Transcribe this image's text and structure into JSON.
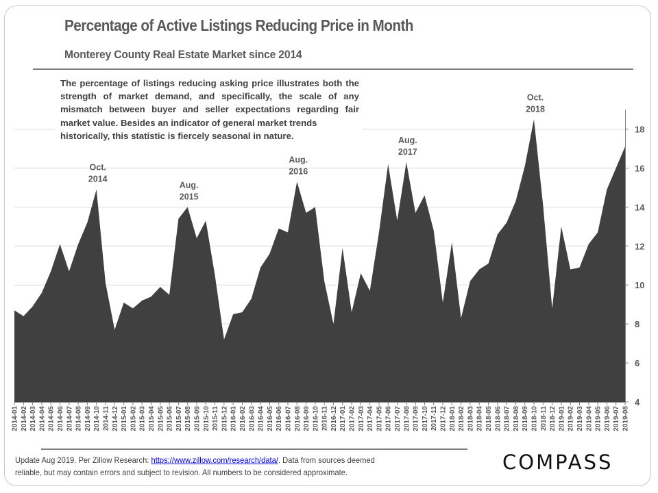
{
  "header": {
    "title": "Percentage of Active Listings Reducing Price in Month",
    "subtitle": "Monterey County Real Estate Market since 2014"
  },
  "description": {
    "body": "The percentage of listings reducing asking price illustrates both the strength of market demand, and specifically, the scale of any mismatch between buyer and seller expectations regarding fair market value. Besides an indicator of general market trends",
    "last_line": "historically, this statistic is fiercely seasonal in nature."
  },
  "footer": {
    "prefix": "Update Aug 2019. Per Zillow Research: ",
    "link_text": "https://www.zillow.com/research/data/",
    "suffix": ". Data from sources deemed",
    "line2": "reliable, but may contain errors and subject to revision.  All numbers to be considered approximate."
  },
  "logo": {
    "text": "COMPASS"
  },
  "colors": {
    "area_fill": "#404040",
    "gridline": "#d9d9d9",
    "axis": "#7f7f7f",
    "text": "#595959"
  },
  "chart_data": {
    "type": "area",
    "title": "Percentage of Active Listings Reducing Price in Month",
    "subtitle": "Monterey County Real Estate Market since 2014",
    "xlabel": "",
    "ylabel": "",
    "ylim": [
      4,
      19
    ],
    "yticks": [
      4,
      6,
      8,
      10,
      12,
      14,
      16,
      18
    ],
    "y_axis_side": "right",
    "grid": true,
    "legend": "none",
    "x": [
      "2014-01",
      "2014-02",
      "2014-03",
      "2014-04",
      "2014-05",
      "2014-06",
      "2014-07",
      "2014-08",
      "2014-09",
      "2014-10",
      "2014-11",
      "2014-12",
      "2015-01",
      "2015-02",
      "2015-03",
      "2015-04",
      "2015-05",
      "2015-06",
      "2015-07",
      "2015-08",
      "2015-09",
      "2015-10",
      "2015-11",
      "2015-12",
      "2016-01",
      "2016-02",
      "2016-03",
      "2016-04",
      "2016-05",
      "2016-06",
      "2016-07",
      "2016-08",
      "2016-09",
      "2016-10",
      "2016-11",
      "2016-12",
      "2017-01",
      "2017-02",
      "2017-03",
      "2017-04",
      "2017-05",
      "2017-06",
      "2017-07",
      "2017-08",
      "2017-09",
      "2017-10",
      "2017-11",
      "2017-12",
      "2018-01",
      "2018-02",
      "2018-03",
      "2018-04",
      "2018-05",
      "2018-06",
      "2018-07",
      "2018-08",
      "2018-09",
      "2018-10",
      "2018-11",
      "2018-12",
      "2019-01",
      "2019-02",
      "2019-03",
      "2019-04",
      "2019-05",
      "2019-06",
      "2019-07",
      "2019-08"
    ],
    "series": [
      {
        "name": "Percentage of active listings reducing price",
        "values": [
          8.7,
          8.4,
          8.9,
          9.6,
          10.7,
          12.1,
          10.7,
          12.1,
          13.2,
          14.9,
          10.1,
          7.7,
          9.1,
          8.8,
          9.2,
          9.4,
          9.9,
          9.5,
          13.4,
          14.0,
          12.4,
          13.3,
          10.5,
          7.2,
          8.5,
          8.6,
          9.3,
          10.9,
          11.6,
          12.9,
          12.7,
          15.3,
          13.7,
          14.0,
          10.2,
          8.0,
          11.9,
          8.6,
          10.6,
          9.7,
          12.7,
          16.2,
          13.3,
          16.3,
          13.7,
          14.6,
          12.8,
          9.1,
          12.2,
          8.3,
          10.2,
          10.8,
          11.1,
          12.6,
          13.2,
          14.3,
          16.1,
          18.5,
          14.1,
          8.8,
          13.0,
          10.8,
          10.9,
          12.1,
          12.7,
          14.9,
          16.0,
          17.1
        ]
      }
    ],
    "annotations": [
      {
        "x": "2014-10",
        "line1": "Oct.",
        "line2": "2014"
      },
      {
        "x": "2015-08",
        "line1": "Aug.",
        "line2": "2015"
      },
      {
        "x": "2016-08",
        "line1": "Aug.",
        "line2": "2016"
      },
      {
        "x": "2017-08",
        "line1": "Aug.",
        "line2": "2017"
      },
      {
        "x": "2018-10",
        "line1": "Oct.",
        "line2": "2018"
      }
    ]
  }
}
